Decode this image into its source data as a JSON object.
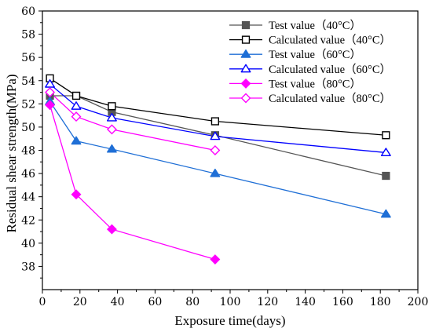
{
  "chart_data": {
    "type": "line",
    "xlabel": "Exposure time(days)",
    "ylabel": "Residual shear strength(MPa)",
    "xlim": [
      0,
      200
    ],
    "ylim": [
      36,
      60
    ],
    "xticks": [
      0,
      20,
      40,
      60,
      80,
      100,
      120,
      140,
      160,
      180,
      200
    ],
    "yticks": [
      38,
      40,
      42,
      44,
      46,
      48,
      50,
      52,
      54,
      56,
      58,
      60
    ],
    "grid": false,
    "legend_position": "top-right",
    "series": [
      {
        "name": "Test value（40°C）",
        "color": "#555555",
        "marker": "square",
        "filled": true,
        "x": [
          4,
          18,
          37,
          92,
          183
        ],
        "y": [
          52.7,
          52.7,
          51.3,
          49.3,
          45.8
        ]
      },
      {
        "name": "Calculated value（40°C）",
        "color": "#000000",
        "marker": "square",
        "filled": false,
        "x": [
          4,
          18,
          37,
          92,
          183
        ],
        "y": [
          54.2,
          52.7,
          51.8,
          50.5,
          49.3
        ]
      },
      {
        "name": "Test value（60°C）",
        "color": "#1f6fd6",
        "marker": "triangle",
        "filled": true,
        "x": [
          4,
          18,
          37,
          92,
          183
        ],
        "y": [
          52.2,
          48.8,
          48.1,
          46.0,
          42.5
        ]
      },
      {
        "name": "Calculated value（60°C）",
        "color": "#0000ff",
        "marker": "triangle",
        "filled": false,
        "x": [
          4,
          18,
          37,
          92,
          183
        ],
        "y": [
          53.7,
          51.8,
          50.8,
          49.2,
          47.8
        ]
      },
      {
        "name": "Test value（80°C）",
        "color": "#ff00ff",
        "marker": "diamond",
        "filled": true,
        "x": [
          4,
          18,
          37,
          92
        ],
        "y": [
          51.9,
          44.2,
          41.2,
          38.6
        ]
      },
      {
        "name": "Calculated value（80°C）",
        "color": "#ff00ff",
        "marker": "diamond",
        "filled": false,
        "x": [
          4,
          18,
          37,
          92
        ],
        "y": [
          53.0,
          50.9,
          49.8,
          48.0
        ]
      }
    ]
  }
}
